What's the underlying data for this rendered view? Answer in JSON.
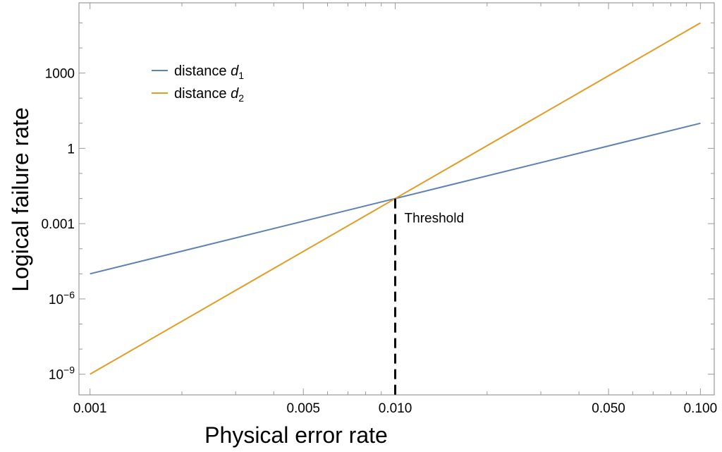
{
  "chart_data": {
    "type": "line",
    "title": "",
    "xlabel": "Physical error rate",
    "ylabel": "Logical failure rate",
    "xscale": "log",
    "yscale": "log",
    "xlim": [
      0.00092,
      0.111
    ],
    "ylim": [
      1.5e-10,
      630000
    ],
    "grid": false,
    "legend_position": "top-left",
    "x_ticks": [
      {
        "value": 0.001,
        "label": "0.001"
      },
      {
        "value": 0.005,
        "label": "0.005"
      },
      {
        "value": 0.01,
        "label": "0.010"
      },
      {
        "value": 0.05,
        "label": "0.050"
      },
      {
        "value": 0.1,
        "label": "0.100"
      }
    ],
    "y_ticks": [
      {
        "value": 1e-09,
        "label": "10",
        "sup": "−9"
      },
      {
        "value": 1e-06,
        "label": "10",
        "sup": "−6"
      },
      {
        "value": 0.001,
        "label": "0.001",
        "sup": ""
      },
      {
        "value": 1,
        "label": "1",
        "sup": ""
      },
      {
        "value": 1000,
        "label": "1000",
        "sup": ""
      }
    ],
    "series": [
      {
        "name": "distance d1",
        "legend_text": "distance ",
        "legend_var": "d",
        "legend_sub": "1",
        "color": "#5E81B5",
        "x": [
          0.001,
          0.01,
          0.1
        ],
        "y": [
          1e-05,
          0.01,
          10
        ]
      },
      {
        "name": "distance d2",
        "legend_text": "distance ",
        "legend_var": "d",
        "legend_sub": "2",
        "color": "#E19C24",
        "x": [
          0.001,
          0.01,
          0.1
        ],
        "y": [
          1e-09,
          0.01,
          100000
        ]
      }
    ],
    "annotations": [
      {
        "text": "Threshold",
        "x": 0.01,
        "y": 0.01,
        "style": "dashed vertical line to x-axis",
        "color": "#000000"
      }
    ]
  }
}
